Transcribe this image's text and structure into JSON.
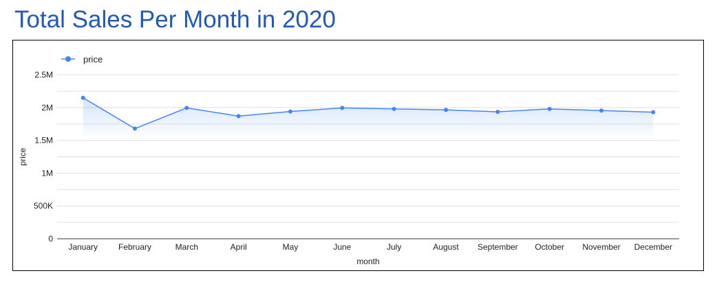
{
  "page": {
    "title": "Total Sales Per Month in 2020"
  },
  "colors": {
    "title": "#2159b8",
    "series": "#4285f4",
    "grid": "#e0e0e0",
    "axis": "#333333"
  },
  "chart_data": {
    "type": "line",
    "title": "",
    "xlabel": "month",
    "ylabel": "price",
    "ylim": [
      0,
      2500000
    ],
    "yticks": [
      0,
      500000,
      1000000,
      1500000,
      2000000,
      2500000
    ],
    "yticklabels": [
      "0",
      "500K",
      "1M",
      "1.5M",
      "2M",
      "2.5M"
    ],
    "grid": true,
    "legend": "top-left",
    "categories": [
      "January",
      "February",
      "March",
      "April",
      "May",
      "June",
      "July",
      "August",
      "September",
      "October",
      "November",
      "December"
    ],
    "series": [
      {
        "name": "price",
        "color": "#4285f4",
        "values": [
          2150000,
          1680000,
          1995000,
          1870000,
          1940000,
          1995000,
          1980000,
          1965000,
          1935000,
          1980000,
          1955000,
          1930000
        ]
      }
    ]
  }
}
